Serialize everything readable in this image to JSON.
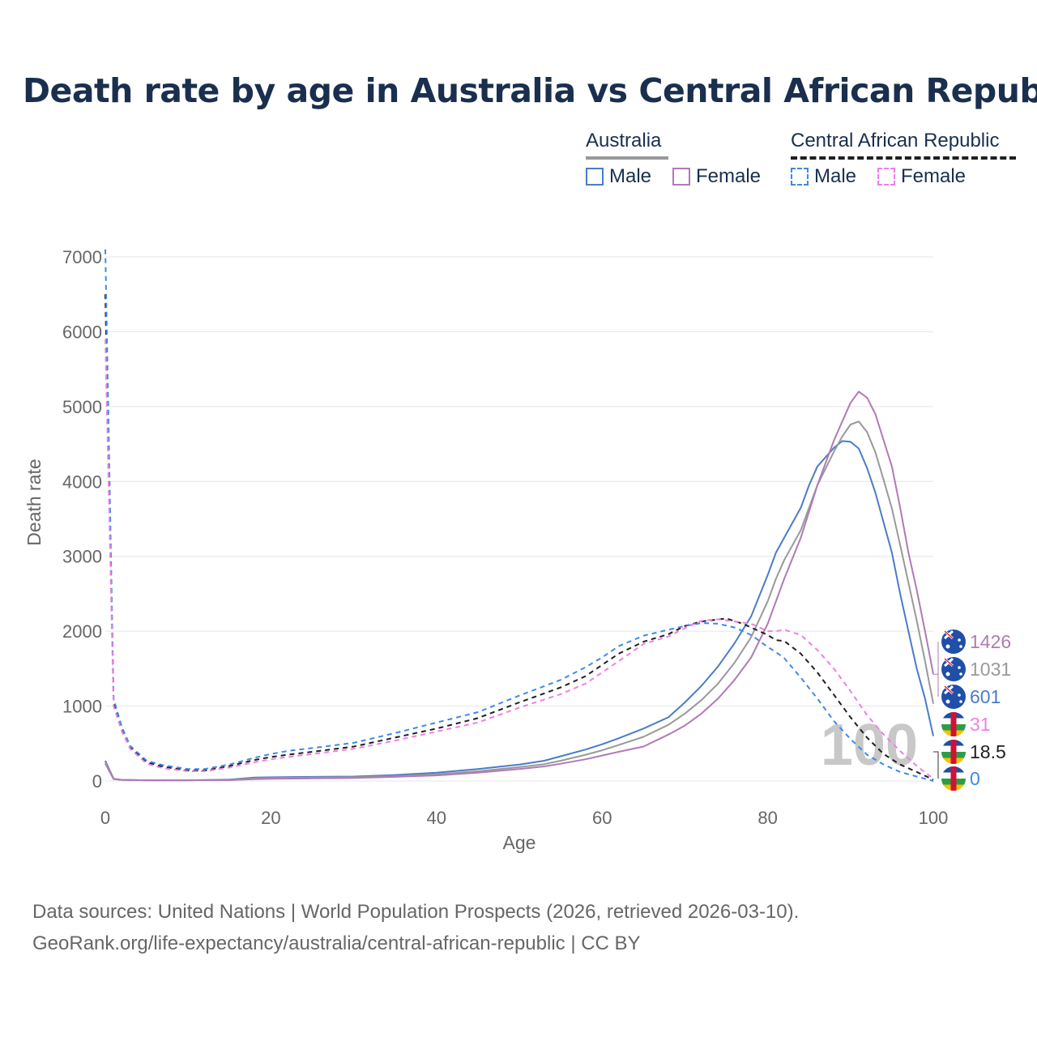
{
  "title": "Death rate by age in Australia vs Central African Republic",
  "legend": {
    "groups": [
      {
        "name": "Australia",
        "line_style": "solid",
        "items": [
          {
            "label": "Male",
            "color": "#4a7cc7",
            "style": "solid"
          },
          {
            "label": "Female",
            "color": "#b07ab5",
            "style": "solid"
          }
        ]
      },
      {
        "name": "Central African Republic",
        "line_style": "dashed",
        "items": [
          {
            "label": "Male",
            "color": "#3d8ae6",
            "style": "dashed"
          },
          {
            "label": "Female",
            "color": "#f07ee8",
            "style": "dashed"
          }
        ]
      }
    ]
  },
  "footer": {
    "line1": "Data sources: United Nations | World Population Prospects (2026, retrieved 2026-03-10).",
    "line2": "GeoRank.org/life-expectancy/australia/central-african-republic | CC BY"
  },
  "chart_data": {
    "type": "line",
    "title": "Death rate by age in Australia vs Central African Republic",
    "xlabel": "Age",
    "ylabel": "Death rate",
    "xlim": [
      0,
      100
    ],
    "ylim": [
      0,
      7000
    ],
    "xticks": [
      0,
      20,
      40,
      60,
      80,
      100
    ],
    "yticks": [
      0,
      1000,
      2000,
      3000,
      4000,
      5000,
      6000,
      7000
    ],
    "grid": true,
    "year_stamp": "100",
    "series": [
      {
        "name": "Australia Male",
        "country": "Australia",
        "color": "#4a7cc7",
        "dash": "",
        "end_label": "601",
        "points": [
          [
            0,
            270
          ],
          [
            1,
            30
          ],
          [
            2,
            15
          ],
          [
            5,
            10
          ],
          [
            10,
            10
          ],
          [
            15,
            20
          ],
          [
            18,
            45
          ],
          [
            20,
            50
          ],
          [
            25,
            55
          ],
          [
            30,
            60
          ],
          [
            35,
            80
          ],
          [
            40,
            110
          ],
          [
            45,
            160
          ],
          [
            50,
            220
          ],
          [
            53,
            270
          ],
          [
            55,
            330
          ],
          [
            58,
            420
          ],
          [
            60,
            490
          ],
          [
            62,
            570
          ],
          [
            65,
            700
          ],
          [
            68,
            850
          ],
          [
            70,
            1050
          ],
          [
            72,
            1270
          ],
          [
            74,
            1530
          ],
          [
            76,
            1840
          ],
          [
            78,
            2200
          ],
          [
            80,
            2750
          ],
          [
            81,
            3050
          ],
          [
            82,
            3250
          ],
          [
            84,
            3650
          ],
          [
            85,
            3950
          ],
          [
            86,
            4200
          ],
          [
            88,
            4450
          ],
          [
            89,
            4540
          ],
          [
            90,
            4530
          ],
          [
            91,
            4440
          ],
          [
            92,
            4180
          ],
          [
            93,
            3850
          ],
          [
            94,
            3450
          ],
          [
            95,
            3050
          ],
          [
            96,
            2500
          ],
          [
            97,
            2000
          ],
          [
            98,
            1500
          ],
          [
            99,
            1100
          ],
          [
            100,
            601
          ]
        ]
      },
      {
        "name": "Australia Both",
        "country": "Australia",
        "color": "#999999",
        "dash": "",
        "end_label": "1031",
        "points": [
          [
            0,
            250
          ],
          [
            1,
            30
          ],
          [
            2,
            15
          ],
          [
            5,
            10
          ],
          [
            10,
            10
          ],
          [
            15,
            15
          ],
          [
            18,
            35
          ],
          [
            20,
            40
          ],
          [
            25,
            45
          ],
          [
            30,
            50
          ],
          [
            35,
            65
          ],
          [
            40,
            90
          ],
          [
            45,
            130
          ],
          [
            50,
            185
          ],
          [
            53,
            225
          ],
          [
            55,
            270
          ],
          [
            58,
            350
          ],
          [
            60,
            410
          ],
          [
            62,
            480
          ],
          [
            65,
            590
          ],
          [
            68,
            750
          ],
          [
            70,
            900
          ],
          [
            72,
            1080
          ],
          [
            74,
            1300
          ],
          [
            76,
            1580
          ],
          [
            78,
            1920
          ],
          [
            80,
            2400
          ],
          [
            81,
            2700
          ],
          [
            82,
            2950
          ],
          [
            84,
            3350
          ],
          [
            85,
            3650
          ],
          [
            86,
            3950
          ],
          [
            88,
            4400
          ],
          [
            89,
            4600
          ],
          [
            90,
            4760
          ],
          [
            91,
            4800
          ],
          [
            92,
            4660
          ],
          [
            93,
            4390
          ],
          [
            94,
            4020
          ],
          [
            95,
            3640
          ],
          [
            96,
            3150
          ],
          [
            97,
            2650
          ],
          [
            98,
            2140
          ],
          [
            99,
            1600
          ],
          [
            100,
            1031
          ]
        ]
      },
      {
        "name": "Australia Female",
        "country": "Australia",
        "color": "#b07ab5",
        "dash": "",
        "end_label": "1426",
        "points": [
          [
            0,
            230
          ],
          [
            1,
            25
          ],
          [
            2,
            15
          ],
          [
            5,
            10
          ],
          [
            10,
            10
          ],
          [
            15,
            12
          ],
          [
            18,
            25
          ],
          [
            20,
            30
          ],
          [
            25,
            35
          ],
          [
            30,
            40
          ],
          [
            35,
            55
          ],
          [
            40,
            75
          ],
          [
            45,
            110
          ],
          [
            50,
            160
          ],
          [
            53,
            195
          ],
          [
            55,
            230
          ],
          [
            58,
            290
          ],
          [
            60,
            340
          ],
          [
            62,
            390
          ],
          [
            65,
            460
          ],
          [
            68,
            620
          ],
          [
            70,
            740
          ],
          [
            72,
            900
          ],
          [
            74,
            1100
          ],
          [
            76,
            1350
          ],
          [
            78,
            1650
          ],
          [
            80,
            2100
          ],
          [
            81,
            2400
          ],
          [
            82,
            2700
          ],
          [
            84,
            3250
          ],
          [
            85,
            3600
          ],
          [
            86,
            3950
          ],
          [
            88,
            4550
          ],
          [
            89,
            4800
          ],
          [
            90,
            5050
          ],
          [
            91,
            5200
          ],
          [
            92,
            5120
          ],
          [
            93,
            4900
          ],
          [
            94,
            4550
          ],
          [
            95,
            4200
          ],
          [
            96,
            3650
          ],
          [
            97,
            3050
          ],
          [
            98,
            2550
          ],
          [
            99,
            2000
          ],
          [
            100,
            1426
          ]
        ]
      },
      {
        "name": "Central African Republic Both",
        "country": "Central African Republic",
        "color": "#1f1f1f",
        "dash": "6,5",
        "end_label": "18.5",
        "points": [
          [
            0,
            6500
          ],
          [
            1,
            1060
          ],
          [
            2,
            700
          ],
          [
            3,
            450
          ],
          [
            5,
            250
          ],
          [
            7,
            190
          ],
          [
            10,
            140
          ],
          [
            12,
            140
          ],
          [
            15,
            200
          ],
          [
            18,
            280
          ],
          [
            20,
            320
          ],
          [
            22,
            350
          ],
          [
            25,
            390
          ],
          [
            30,
            460
          ],
          [
            35,
            580
          ],
          [
            40,
            700
          ],
          [
            45,
            840
          ],
          [
            50,
            1050
          ],
          [
            55,
            1250
          ],
          [
            58,
            1400
          ],
          [
            60,
            1550
          ],
          [
            62,
            1700
          ],
          [
            65,
            1860
          ],
          [
            68,
            1960
          ],
          [
            70,
            2070
          ],
          [
            72,
            2130
          ],
          [
            75,
            2170
          ],
          [
            77,
            2100
          ],
          [
            80,
            1950
          ],
          [
            81,
            1880
          ],
          [
            82,
            1870
          ],
          [
            84,
            1700
          ],
          [
            86,
            1450
          ],
          [
            88,
            1150
          ],
          [
            90,
            850
          ],
          [
            92,
            580
          ],
          [
            94,
            360
          ],
          [
            96,
            220
          ],
          [
            98,
            120
          ],
          [
            100,
            18.5
          ]
        ]
      },
      {
        "name": "Central African Republic Male",
        "country": "Central African Republic",
        "color": "#3d8ae6",
        "dash": "6,5",
        "end_label": "0",
        "points": [
          [
            0,
            7100
          ],
          [
            1,
            1100
          ],
          [
            2,
            720
          ],
          [
            3,
            470
          ],
          [
            5,
            270
          ],
          [
            7,
            210
          ],
          [
            10,
            160
          ],
          [
            12,
            160
          ],
          [
            15,
            220
          ],
          [
            18,
            310
          ],
          [
            20,
            360
          ],
          [
            22,
            400
          ],
          [
            25,
            440
          ],
          [
            30,
            510
          ],
          [
            35,
            640
          ],
          [
            40,
            780
          ],
          [
            45,
            920
          ],
          [
            50,
            1140
          ],
          [
            55,
            1350
          ],
          [
            58,
            1520
          ],
          [
            60,
            1650
          ],
          [
            62,
            1800
          ],
          [
            65,
            1940
          ],
          [
            68,
            2020
          ],
          [
            70,
            2070
          ],
          [
            72,
            2110
          ],
          [
            74,
            2100
          ],
          [
            76,
            2050
          ],
          [
            78,
            1950
          ],
          [
            80,
            1790
          ],
          [
            81,
            1720
          ],
          [
            82,
            1640
          ],
          [
            84,
            1380
          ],
          [
            86,
            1100
          ],
          [
            88,
            800
          ],
          [
            90,
            560
          ],
          [
            92,
            350
          ],
          [
            94,
            220
          ],
          [
            96,
            120
          ],
          [
            98,
            60
          ],
          [
            100,
            0
          ]
        ]
      },
      {
        "name": "Central African Republic Female",
        "country": "Central African Republic",
        "color": "#f07ee8",
        "dash": "6,5",
        "end_label": "31",
        "points": [
          [
            0,
            5900
          ],
          [
            1,
            1000
          ],
          [
            2,
            660
          ],
          [
            3,
            430
          ],
          [
            5,
            230
          ],
          [
            7,
            170
          ],
          [
            10,
            130
          ],
          [
            12,
            130
          ],
          [
            15,
            180
          ],
          [
            18,
            250
          ],
          [
            20,
            290
          ],
          [
            22,
            320
          ],
          [
            25,
            360
          ],
          [
            30,
            430
          ],
          [
            35,
            540
          ],
          [
            40,
            660
          ],
          [
            45,
            780
          ],
          [
            50,
            980
          ],
          [
            55,
            1160
          ],
          [
            58,
            1300
          ],
          [
            60,
            1450
          ],
          [
            62,
            1600
          ],
          [
            65,
            1830
          ],
          [
            68,
            1930
          ],
          [
            70,
            2040
          ],
          [
            72,
            2140
          ],
          [
            74,
            2160
          ],
          [
            76,
            2130
          ],
          [
            78,
            2100
          ],
          [
            80,
            2000
          ],
          [
            81,
            2000
          ],
          [
            82,
            2020
          ],
          [
            84,
            1950
          ],
          [
            86,
            1750
          ],
          [
            88,
            1500
          ],
          [
            90,
            1200
          ],
          [
            92,
            880
          ],
          [
            94,
            620
          ],
          [
            96,
            400
          ],
          [
            98,
            200
          ],
          [
            100,
            31
          ]
        ]
      }
    ],
    "end_labels": [
      {
        "series": "Australia Female",
        "value": "1426",
        "color": "#b07ab5",
        "flag": "Australia"
      },
      {
        "series": "Australia Both",
        "value": "1031",
        "color": "#999999",
        "flag": "Australia"
      },
      {
        "series": "Australia Male",
        "value": "601",
        "color": "#4a7cc7",
        "flag": "Australia"
      },
      {
        "series": "Central African Republic Female",
        "value": "31",
        "color": "#f07ee8",
        "flag": "Central African Republic"
      },
      {
        "series": "Central African Republic Both",
        "value": "18.5",
        "color": "#1f1f1f",
        "flag": "Central African Republic"
      },
      {
        "series": "Central African Republic Male",
        "value": "0",
        "color": "#3d8ae6",
        "flag": "Central African Republic"
      }
    ]
  }
}
